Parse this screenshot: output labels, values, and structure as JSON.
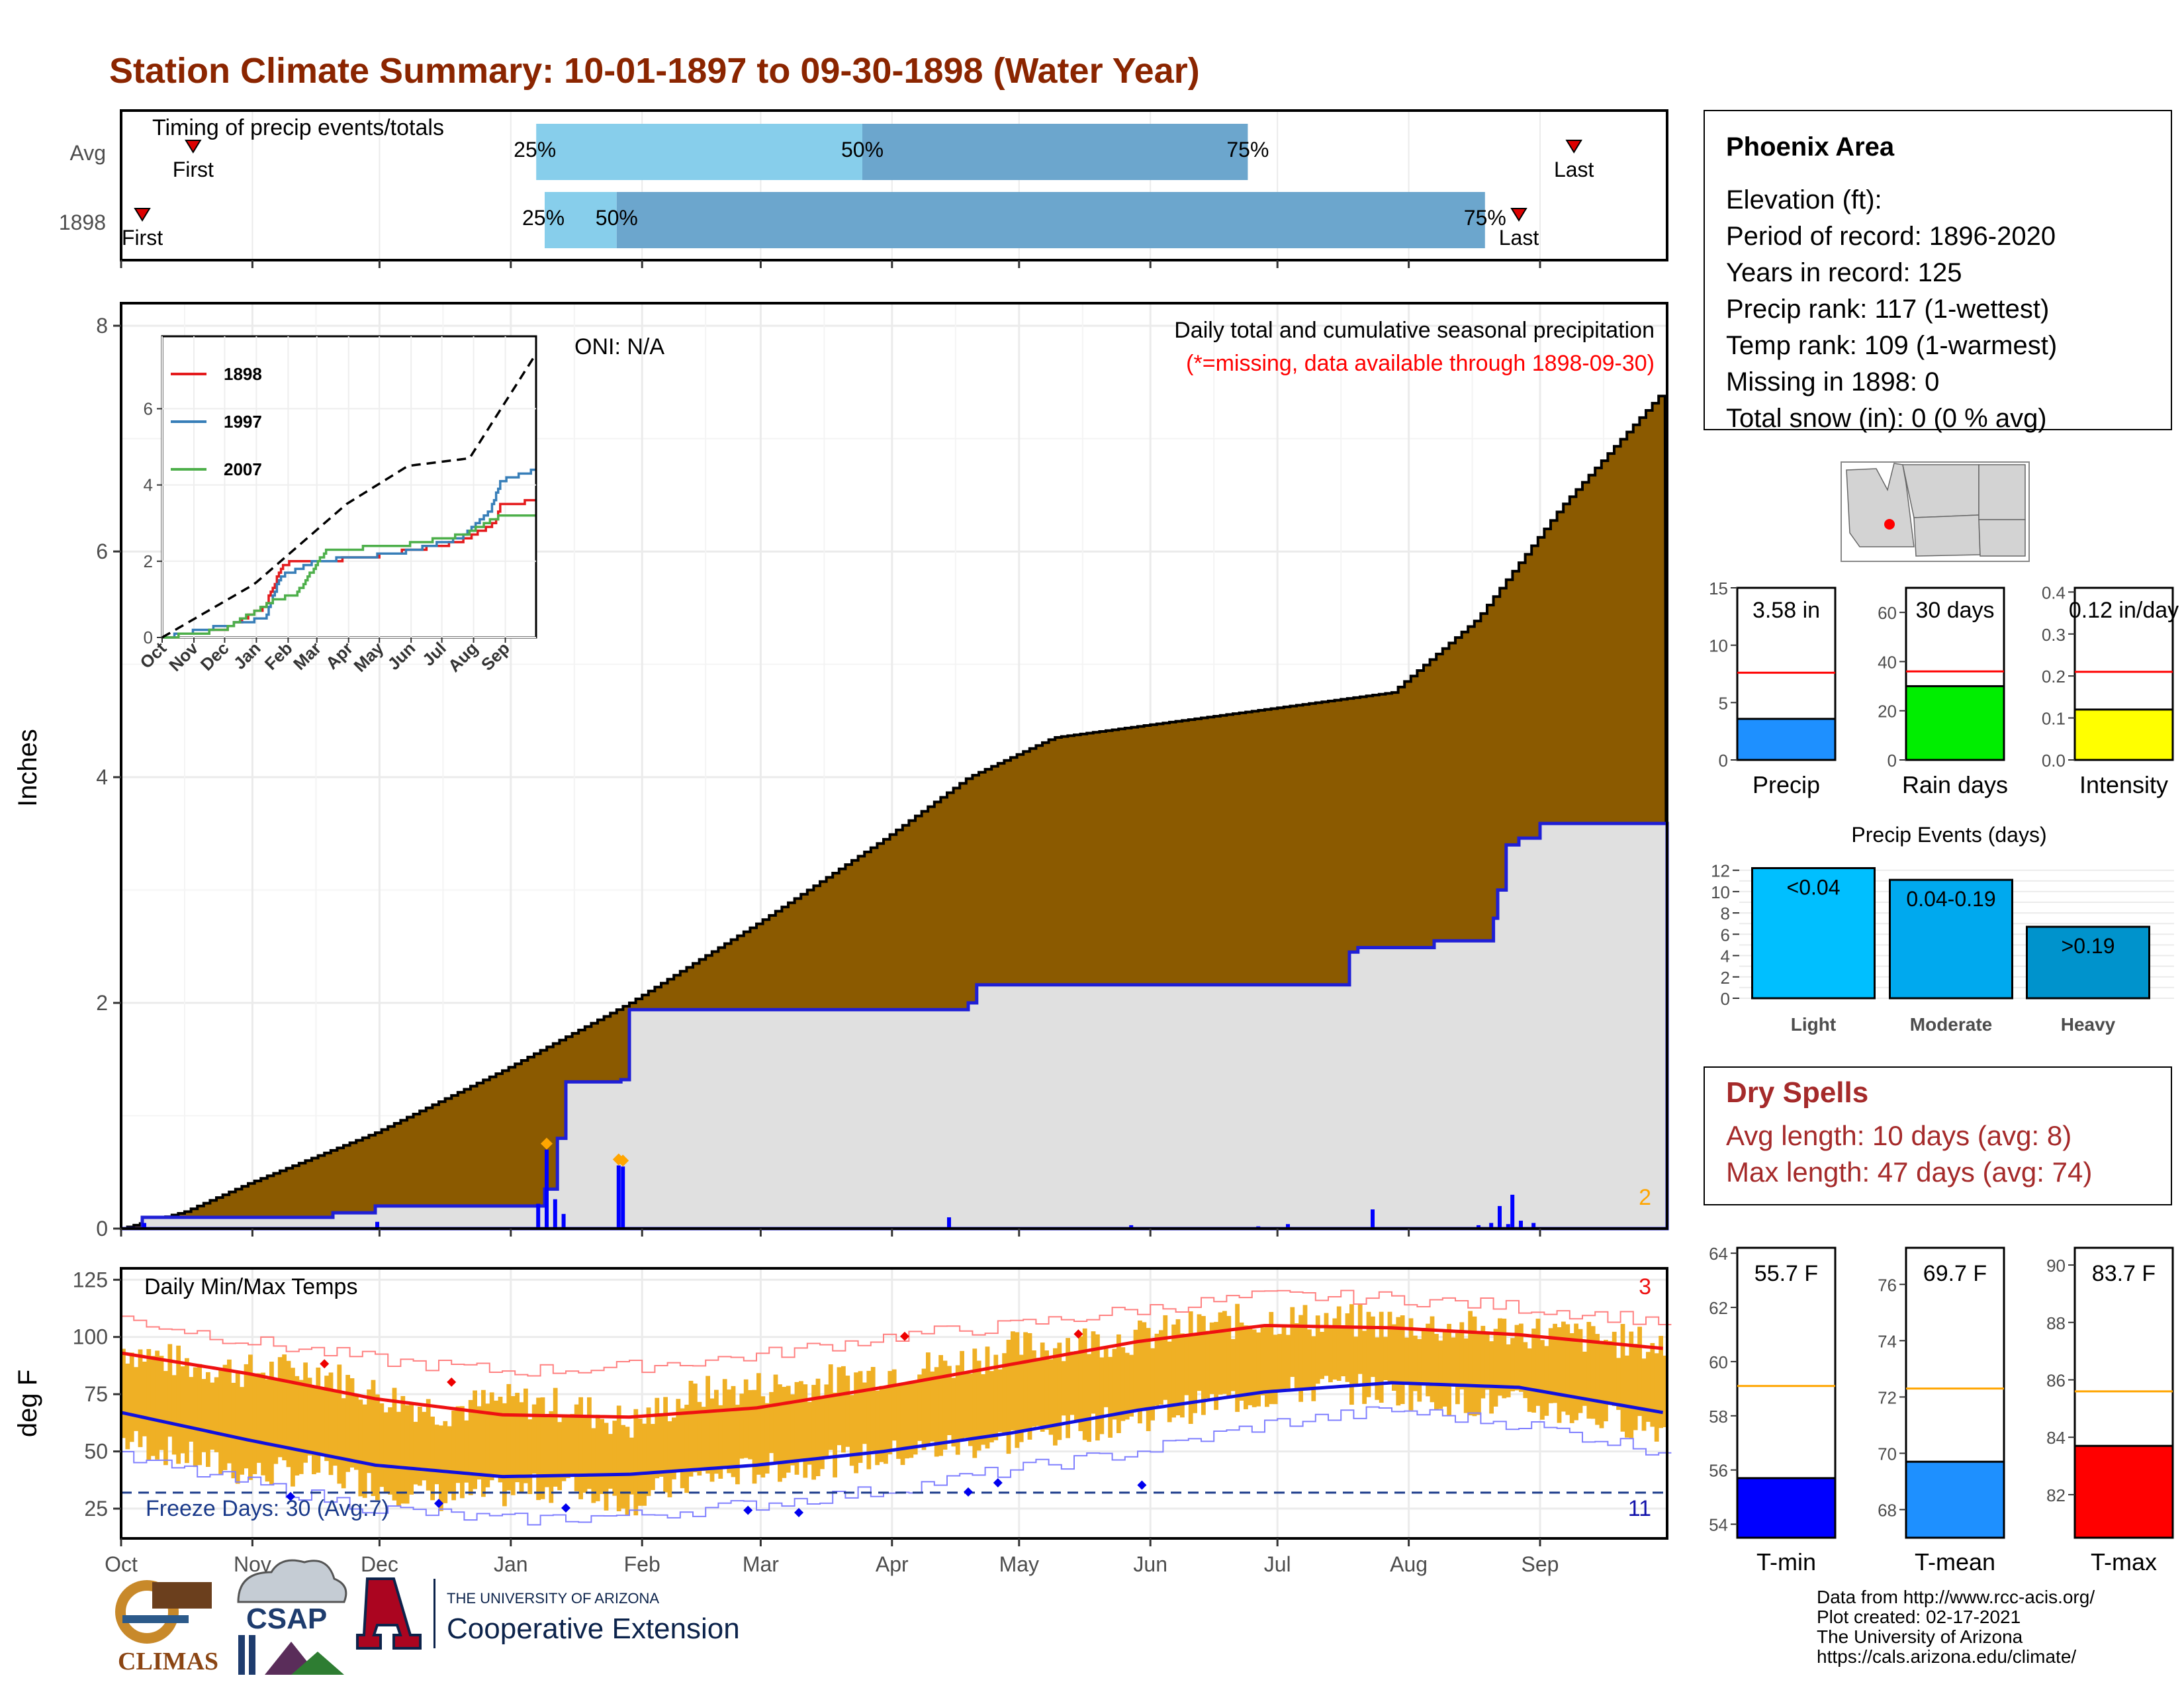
{
  "title": "Station Climate Summary: 10-01-1897 to 09-30-1898 (Water Year)",
  "colors": {
    "title": "#8b2500",
    "cumulative_fill": "#8b5a00",
    "observed_fill": "#e0e0e0",
    "observed_line": "#1f1fd6",
    "temp_bar": "#efb025",
    "tmax_avg": "#ee1111",
    "tmin_avg": "#1111dd",
    "extreme": "#ffa500"
  },
  "timing": {
    "label": "Timing of precip events/totals",
    "rows": [
      {
        "name": "Avg",
        "first_label": "First",
        "last_label": "Last",
        "first_day": 17,
        "last_day": 343,
        "p25": 98,
        "p50": 175,
        "p75": 266,
        "p25_label": "25%",
        "p50_label": "50%",
        "p75_label": "75%"
      },
      {
        "name": "1898",
        "first_label": "First",
        "last_label": "Last",
        "first_day": 5,
        "last_day": 330,
        "p25": 100,
        "p50": 117,
        "p75": 322,
        "p25_label": "25%",
        "p50_label": "50%",
        "p75_label": "75%"
      }
    ]
  },
  "precip_panel": {
    "title": "Daily total and cumulative seasonal precipitation",
    "missing_note": "(*=missing, data available through 1898-09-30)",
    "oni": "ONI: N/A",
    "ylabel": "Inches",
    "yticks": [
      "0",
      "2",
      "4",
      "6",
      "8"
    ],
    "extreme_count": "2"
  },
  "months": [
    "Oct",
    "Nov",
    "Dec",
    "Jan",
    "Feb",
    "Mar",
    "Apr",
    "May",
    "Jun",
    "Jul",
    "Aug",
    "Sep"
  ],
  "inset": {
    "legend": [
      "1898",
      "1997",
      "2007"
    ],
    "months": [
      "Oct",
      "Nov",
      "Dec",
      "Jan",
      "Feb",
      "Mar",
      "Apr",
      "May",
      "Jun",
      "Jul",
      "Aug",
      "Sep"
    ],
    "yticks": [
      "0",
      "2",
      "4",
      "6"
    ]
  },
  "temp_panel": {
    "title": "Daily Min/Max Temps",
    "ylabel": "deg F",
    "yticks": [
      "25",
      "50",
      "75",
      "100",
      "125"
    ],
    "freeze_label": "Freeze Days: 30 (Avg:7)",
    "high_count": "3",
    "low_count": "11"
  },
  "station": {
    "name": "Phoenix Area",
    "lines": [
      "Elevation (ft):",
      "Period of record: 1896-2020",
      "Years in record: 125",
      "Precip rank: 117 (1-wettest)",
      "Temp rank: 109 (1-warmest)",
      "Missing in 1898: 0",
      "Total snow (in): 0 (0 % avg)"
    ]
  },
  "mini_bars": [
    {
      "value_label": "3.58 in",
      "axis_label": "Precip",
      "value": 3.58,
      "avg": 7.6,
      "yticks": [
        "0",
        "5",
        "10",
        "15"
      ],
      "ymax": 15,
      "tickvals": [
        0,
        5,
        10,
        15
      ],
      "color": "#1e90ff"
    },
    {
      "value_label": "30 days",
      "axis_label": "Rain days",
      "value": 30,
      "avg": 36,
      "yticks": [
        "0",
        "20",
        "40",
        "60"
      ],
      "ymax": 70,
      "tickvals": [
        0,
        20,
        40,
        60
      ],
      "color": "#00ee00"
    },
    {
      "value_label": "0.12 in/day",
      "axis_label": "Intensity",
      "value": 0.12,
      "avg": 0.21,
      "yticks": [
        "0.0",
        "0.1",
        "0.2",
        "0.3",
        "0.4"
      ],
      "ymax": 0.41,
      "tickvals": [
        0,
        0.1,
        0.2,
        0.3,
        0.4
      ],
      "color": "#ffff00"
    }
  ],
  "precip_events": {
    "title": "Precip Events (days)",
    "yticks": [
      "0",
      "2",
      "4",
      "6",
      "8",
      "10",
      "12"
    ],
    "bars": [
      {
        "category": "Light",
        "label": "<0.04",
        "value": 12.2,
        "color": "#00bfff"
      },
      {
        "category": "Moderate",
        "label": "0.04-0.19",
        "value": 11.1,
        "color": "#00a9ee"
      },
      {
        "category": "Heavy",
        "label": ">0.19",
        "value": 6.7,
        "color": "#0093cc"
      }
    ]
  },
  "dry_spells": {
    "title": "Dry Spells",
    "avg_line": "Avg length: 10 days (avg: 8)",
    "max_line": "Max length: 47 days (avg: 74)"
  },
  "temp_bars": [
    {
      "value_label": "55.7 F",
      "axis_label": "T-min",
      "value": 55.7,
      "avg": 59.1,
      "ymin": 53.5,
      "ymax": 64.2,
      "yticks": [
        "54",
        "56",
        "58",
        "60",
        "62",
        "64"
      ],
      "tickvals": [
        54,
        56,
        58,
        60,
        62,
        64
      ],
      "color": "#0000ff"
    },
    {
      "value_label": "69.7 F",
      "axis_label": "T-mean",
      "value": 69.7,
      "avg": 72.3,
      "ymin": 67,
      "ymax": 77.3,
      "yticks": [
        "68",
        "70",
        "72",
        "74",
        "76"
      ],
      "tickvals": [
        68,
        70,
        72,
        74,
        76
      ],
      "color": "#1e90ff"
    },
    {
      "value_label": "83.7 F",
      "axis_label": "T-max",
      "value": 83.7,
      "avg": 85.6,
      "ymin": 80.5,
      "ymax": 90.6,
      "yticks": [
        "82",
        "84",
        "86",
        "88",
        "90"
      ],
      "tickvals": [
        82,
        84,
        86,
        88,
        90
      ],
      "color": "#ff0000"
    }
  ],
  "credits": {
    "lines": [
      "Data from http://www.rcc-acis.org/",
      "Plot created: 02-17-2021",
      "The University of Arizona",
      "https://cals.arizona.edu/climate/"
    ],
    "logo_climas": "CLIMAS",
    "logo_csap": "CSAP",
    "ua_small": "THE UNIVERSITY OF ARIZONA",
    "ua_big": "Cooperative Extension"
  },
  "chart_data": [
    {
      "type": "area",
      "title": "Daily total and cumulative seasonal precipitation",
      "ylabel": "Inches",
      "ylim": [
        0,
        8.2
      ],
      "series": [
        {
          "name": "cumulative average",
          "x_day": [
            0,
            15,
            30,
            60,
            90,
            120,
            150,
            180,
            200,
            220,
            240,
            270,
            290,
            300,
            320,
            340,
            364
          ],
          "y": [
            0,
            0.15,
            0.4,
            0.85,
            1.4,
            2.0,
            2.7,
            3.45,
            4.0,
            4.35,
            4.45,
            4.6,
            4.7,
            4.75,
            5.4,
            6.4,
            7.42
          ]
        },
        {
          "name": "cumulative 1898",
          "x_day": [
            0,
            5,
            50,
            60,
            100,
            103,
            105,
            118,
            120,
            200,
            202,
            290,
            292,
            310,
            320,
            324,
            325,
            327,
            330,
            335,
            364
          ],
          "y": [
            0,
            0.1,
            0.14,
            0.2,
            0.35,
            0.8,
            1.3,
            1.32,
            1.94,
            2.0,
            2.16,
            2.45,
            2.49,
            2.55,
            2.55,
            2.75,
            3.0,
            3.4,
            3.46,
            3.59,
            3.59
          ]
        },
        {
          "name": "daily 1898",
          "x_day": [
            5,
            60,
            98,
            100,
            102,
            104,
            117,
            118,
            195,
            238,
            268,
            275,
            295,
            320,
            323,
            325,
            327,
            328,
            330,
            333
          ],
          "y": [
            0.05,
            0.06,
            0.22,
            0.7,
            0.26,
            0.13,
            0.56,
            0.55,
            0.1,
            0.03,
            0.02,
            0.04,
            0.17,
            0.03,
            0.05,
            0.2,
            0.04,
            0.3,
            0.07,
            0.05
          ]
        }
      ]
    },
    {
      "type": "line",
      "title": "inset cumulative comparison",
      "yticks": [
        0,
        2,
        4,
        6
      ],
      "series": [
        {
          "name": "1898",
          "x_day": [
            0,
            60,
            100,
            118,
            200,
            290,
            325,
            330,
            364
          ],
          "y": [
            0,
            0.2,
            0.8,
            1.94,
            2.1,
            2.5,
            3.0,
            3.46,
            3.59
          ]
        },
        {
          "name": "1997",
          "x_day": [
            0,
            60,
            100,
            115,
            150,
            230,
            290,
            320,
            330,
            364
          ],
          "y": [
            0,
            0.3,
            0.5,
            1.6,
            2.0,
            2.2,
            2.6,
            3.3,
            4.1,
            4.4
          ]
        },
        {
          "name": "2007",
          "x_day": [
            0,
            60,
            110,
            130,
            160,
            230,
            295,
            330,
            364
          ],
          "y": [
            0,
            0.2,
            1.0,
            1.1,
            2.3,
            2.4,
            2.7,
            3.2,
            3.2
          ]
        },
        {
          "name": "average",
          "x_day": [
            0,
            90,
            180,
            240,
            300,
            364
          ],
          "y": [
            0,
            1.4,
            3.5,
            4.5,
            4.7,
            7.4
          ]
        }
      ]
    },
    {
      "type": "bar",
      "title": "Daily Min/Max Temps",
      "ylabel": "deg F",
      "ylim": [
        12,
        130
      ],
      "avg_tmax": {
        "x_day": [
          0,
          30,
          60,
          90,
          120,
          150,
          180,
          210,
          240,
          270,
          300,
          330,
          364
        ],
        "y": [
          93,
          84,
          73,
          66,
          65,
          69,
          78,
          88,
          98,
          105,
          104,
          101,
          95
        ]
      },
      "avg_tmin": {
        "x_day": [
          0,
          30,
          60,
          90,
          120,
          150,
          180,
          210,
          240,
          270,
          300,
          330,
          364
        ],
        "y": [
          67,
          55,
          44,
          39,
          40,
          44,
          50,
          58,
          68,
          76,
          80,
          78,
          67
        ]
      },
      "record_high": {
        "x_day": [
          0,
          30,
          60,
          90,
          120,
          150,
          180,
          210,
          240,
          270,
          300,
          330,
          364
        ],
        "y": [
          108,
          98,
          90,
          85,
          87,
          92,
          100,
          105,
          112,
          118,
          117,
          113,
          107
        ]
      },
      "record_low": {
        "x_day": [
          0,
          30,
          60,
          90,
          120,
          150,
          180,
          210,
          240,
          270,
          300,
          330,
          364
        ],
        "y": [
          47,
          36,
          25,
          20,
          22,
          27,
          33,
          42,
          50,
          62,
          68,
          62,
          50
        ]
      },
      "daily_envelope": {
        "x_day": [
          0,
          15,
          30,
          45,
          60,
          75,
          90,
          105,
          120,
          135,
          150,
          165,
          180,
          195,
          210,
          225,
          240,
          255,
          270,
          285,
          300,
          315,
          330,
          345,
          364
        ],
        "tmax": [
          95,
          88,
          85,
          86,
          75,
          68,
          72,
          70,
          62,
          75,
          78,
          80,
          85,
          88,
          95,
          98,
          100,
          105,
          108,
          107,
          106,
          104,
          103,
          100,
          96
        ],
        "tmin": [
          55,
          48,
          40,
          42,
          35,
          30,
          32,
          35,
          28,
          38,
          42,
          45,
          48,
          52,
          55,
          60,
          65,
          70,
          75,
          78,
          76,
          72,
          70,
          66,
          60
        ]
      },
      "freeze_line": 32
    }
  ]
}
